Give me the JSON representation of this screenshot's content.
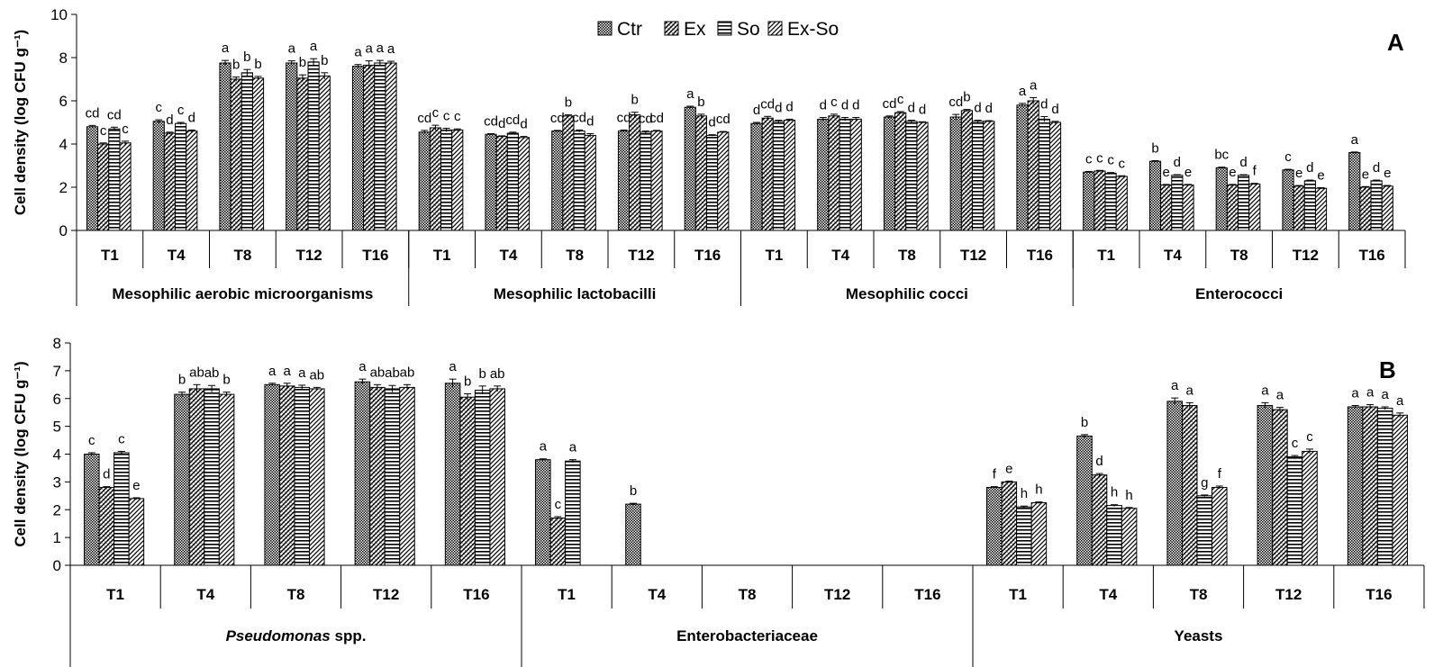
{
  "chart_data": [
    {
      "type": "bar",
      "panel_label": "A",
      "ylabel": "Cell density (log CFU g⁻¹)",
      "ylim": [
        0,
        10
      ],
      "yticks": [
        "0",
        "2",
        "4",
        "6",
        "8",
        "10"
      ],
      "legend": [
        "Ctr",
        "Ex",
        "So",
        "Ex-So"
      ],
      "legend_position": "top-center",
      "groups": [
        {
          "name": "Mesophilic aerobic microorganisms",
          "times": [
            {
              "label": "T1",
              "values": [
                4.8,
                4.0,
                4.7,
                4.05
              ],
              "err": [
                0.06,
                0.05,
                0.08,
                0.08
              ],
              "letters": [
                "cd",
                "c",
                "cd",
                "c"
              ]
            },
            {
              "label": "T4",
              "values": [
                5.05,
                4.5,
                4.95,
                4.6
              ],
              "err": [
                0.07,
                0.05,
                0.05,
                0.05
              ],
              "letters": [
                "c",
                "d",
                "c",
                "d"
              ]
            },
            {
              "label": "T8",
              "values": [
                7.75,
                7.0,
                7.3,
                7.05
              ],
              "err": [
                0.12,
                0.1,
                0.15,
                0.08
              ],
              "letters": [
                "a",
                "b",
                "b",
                "b"
              ]
            },
            {
              "label": "T12",
              "values": [
                7.75,
                7.05,
                7.8,
                7.15
              ],
              "err": [
                0.1,
                0.15,
                0.15,
                0.15
              ],
              "letters": [
                "a",
                "b",
                "a",
                "b"
              ]
            },
            {
              "label": "T16",
              "values": [
                7.6,
                7.65,
                7.75,
                7.75
              ],
              "err": [
                0.08,
                0.2,
                0.12,
                0.08
              ],
              "letters": [
                "a",
                "a",
                "a",
                "a"
              ]
            }
          ]
        },
        {
          "name": "Mesophilic lactobacilli",
          "times": [
            {
              "label": "T1",
              "values": [
                4.55,
                4.75,
                4.65,
                4.65
              ],
              "err": [
                0.08,
                0.12,
                0.08,
                0.05
              ],
              "letters": [
                "cd",
                "c",
                "c",
                "c"
              ]
            },
            {
              "label": "T4",
              "values": [
                4.45,
                4.35,
                4.5,
                4.3
              ],
              "err": [
                0.03,
                0.03,
                0.05,
                0.05
              ],
              "letters": [
                "cd",
                "d",
                "cd",
                "d"
              ]
            },
            {
              "label": "T8",
              "values": [
                4.6,
                5.3,
                4.6,
                4.4
              ],
              "err": [
                0.03,
                0.05,
                0.05,
                0.08
              ],
              "letters": [
                "cd",
                "b",
                "cd",
                "d"
              ]
            },
            {
              "label": "T12",
              "values": [
                4.6,
                5.35,
                4.55,
                4.6
              ],
              "err": [
                0.05,
                0.12,
                0.05,
                0.03
              ],
              "letters": [
                "cd",
                "b",
                "cd",
                "cd"
              ]
            },
            {
              "label": "T16",
              "values": [
                5.7,
                5.3,
                4.4,
                4.55
              ],
              "err": [
                0.05,
                0.08,
                0.03,
                0.03
              ],
              "letters": [
                "a",
                "b",
                "d",
                "cd"
              ]
            }
          ]
        },
        {
          "name": "Mesophilic cocci",
          "times": [
            {
              "label": "T1",
              "values": [
                4.95,
                5.2,
                5.05,
                5.1
              ],
              "err": [
                0.05,
                0.08,
                0.05,
                0.05
              ],
              "letters": [
                "d",
                "cd",
                "d",
                "d"
              ]
            },
            {
              "label": "T4",
              "values": [
                5.15,
                5.3,
                5.15,
                5.15
              ],
              "err": [
                0.08,
                0.08,
                0.08,
                0.08
              ],
              "letters": [
                "d",
                "c",
                "d",
                "d"
              ]
            },
            {
              "label": "T8",
              "values": [
                5.25,
                5.45,
                5.05,
                5.0
              ],
              "err": [
                0.05,
                0.05,
                0.05,
                0.03
              ],
              "letters": [
                "cd",
                "c",
                "d",
                "d"
              ]
            },
            {
              "label": "T12",
              "values": [
                5.25,
                5.55,
                5.05,
                5.05
              ],
              "err": [
                0.12,
                0.05,
                0.05,
                0.03
              ],
              "letters": [
                "cd",
                "b",
                "d",
                "d"
              ]
            },
            {
              "label": "T16",
              "values": [
                5.8,
                6.0,
                5.15,
                5.0
              ],
              "err": [
                0.08,
                0.15,
                0.12,
                0.05
              ],
              "letters": [
                "a",
                "a",
                "d",
                "d"
              ]
            }
          ]
        },
        {
          "name": "Enterococci",
          "times": [
            {
              "label": "T1",
              "values": [
                2.7,
                2.75,
                2.65,
                2.5
              ],
              "err": [
                0.03,
                0.03,
                0.03,
                0.03
              ],
              "letters": [
                "c",
                "c",
                "c",
                "c"
              ]
            },
            {
              "label": "T4",
              "values": [
                3.2,
                2.1,
                2.55,
                2.1
              ],
              "err": [
                0.03,
                0.03,
                0.03,
                0.03
              ],
              "letters": [
                "b",
                "e",
                "d",
                "e"
              ]
            },
            {
              "label": "T8",
              "values": [
                2.9,
                2.1,
                2.55,
                2.15
              ],
              "err": [
                0.03,
                0.03,
                0.03,
                0.03
              ],
              "letters": [
                "bc",
                "e",
                "d",
                "f"
              ]
            },
            {
              "label": "T12",
              "values": [
                2.8,
                2.05,
                2.3,
                1.95
              ],
              "err": [
                0.03,
                0.03,
                0.03,
                0.03
              ],
              "letters": [
                "c",
                "e",
                "d",
                "e"
              ]
            },
            {
              "label": "T16",
              "values": [
                3.6,
                2.0,
                2.3,
                2.05
              ],
              "err": [
                0.03,
                0.03,
                0.03,
                0.03
              ],
              "letters": [
                "a",
                "e",
                "d",
                "e"
              ]
            }
          ]
        }
      ]
    },
    {
      "type": "bar",
      "panel_label": "B",
      "ylabel": "Cell density (log CFU g⁻¹)",
      "ylim": [
        0,
        8
      ],
      "yticks": [
        "0",
        "1",
        "2",
        "3",
        "4",
        "5",
        "6",
        "7",
        "8"
      ],
      "legend": [
        "Ctr",
        "Ex",
        "So",
        "Ex-So"
      ],
      "groups": [
        {
          "name": "Pseudomonas",
          "name_suffix": " spp.",
          "italic": true,
          "times": [
            {
              "label": "T1",
              "values": [
                4.0,
                2.8,
                4.05,
                2.4
              ],
              "err": [
                0.05,
                0.03,
                0.05,
                0.03
              ],
              "letters": [
                "c",
                "d",
                "c",
                "e"
              ]
            },
            {
              "label": "T4",
              "values": [
                6.15,
                6.35,
                6.35,
                6.15
              ],
              "err": [
                0.08,
                0.15,
                0.12,
                0.08
              ],
              "letters": [
                "b",
                "ab",
                "ab",
                "b"
              ]
            },
            {
              "label": "T8",
              "values": [
                6.5,
                6.45,
                6.4,
                6.35
              ],
              "err": [
                0.05,
                0.1,
                0.08,
                0.05
              ],
              "letters": [
                "a",
                "a",
                "a",
                "ab"
              ]
            },
            {
              "label": "T12",
              "values": [
                6.6,
                6.4,
                6.35,
                6.4
              ],
              "err": [
                0.1,
                0.1,
                0.12,
                0.1
              ],
              "letters": [
                "a",
                "ab",
                "ab",
                "ab"
              ]
            },
            {
              "label": "T16",
              "values": [
                6.55,
                6.05,
                6.3,
                6.35
              ],
              "err": [
                0.15,
                0.12,
                0.15,
                0.1
              ],
              "letters": [
                "a",
                "b",
                "b",
                "ab"
              ]
            }
          ]
        },
        {
          "name": "Enterobacteriaceae",
          "times": [
            {
              "label": "T1",
              "values": [
                3.8,
                1.7,
                3.75,
                null
              ],
              "err": [
                0.03,
                0.05,
                0.05,
                0
              ],
              "letters": [
                "a",
                "c",
                "a",
                ""
              ]
            },
            {
              "label": "T4",
              "values": [
                2.2,
                null,
                null,
                null
              ],
              "err": [
                0.03,
                0,
                0,
                0
              ],
              "letters": [
                "b",
                "",
                "",
                ""
              ]
            },
            {
              "label": "T8",
              "values": [
                null,
                null,
                null,
                null
              ],
              "err": [
                0,
                0,
                0,
                0
              ],
              "letters": [
                "",
                "",
                "",
                ""
              ]
            },
            {
              "label": "T12",
              "values": [
                null,
                null,
                null,
                null
              ],
              "err": [
                0,
                0,
                0,
                0
              ],
              "letters": [
                "",
                "",
                "",
                ""
              ]
            },
            {
              "label": "T16",
              "values": [
                null,
                null,
                null,
                null
              ],
              "err": [
                0,
                0,
                0,
                0
              ],
              "letters": [
                "",
                "",
                "",
                ""
              ]
            }
          ]
        },
        {
          "name": "Yeasts",
          "times": [
            {
              "label": "T1",
              "values": [
                2.8,
                3.0,
                2.1,
                2.25
              ],
              "err": [
                0.03,
                0.03,
                0.03,
                0.03
              ],
              "letters": [
                "f",
                "e",
                "h",
                "h"
              ]
            },
            {
              "label": "T4",
              "values": [
                4.65,
                3.25,
                2.15,
                2.05
              ],
              "err": [
                0.05,
                0.05,
                0.03,
                0.03
              ],
              "letters": [
                "b",
                "d",
                "h",
                "h"
              ]
            },
            {
              "label": "T8",
              "values": [
                5.9,
                5.75,
                2.5,
                2.8
              ],
              "err": [
                0.12,
                0.1,
                0.03,
                0.05
              ],
              "letters": [
                "a",
                "a",
                "g",
                "f"
              ]
            },
            {
              "label": "T12",
              "values": [
                5.75,
                5.6,
                3.9,
                4.1
              ],
              "err": [
                0.1,
                0.08,
                0.05,
                0.08
              ],
              "letters": [
                "a",
                "a",
                "c",
                "c"
              ]
            },
            {
              "label": "T16",
              "values": [
                5.7,
                5.7,
                5.65,
                5.4
              ],
              "err": [
                0.05,
                0.08,
                0.05,
                0.08
              ],
              "letters": [
                "a",
                "a",
                "a",
                "a"
              ]
            }
          ]
        }
      ]
    }
  ]
}
